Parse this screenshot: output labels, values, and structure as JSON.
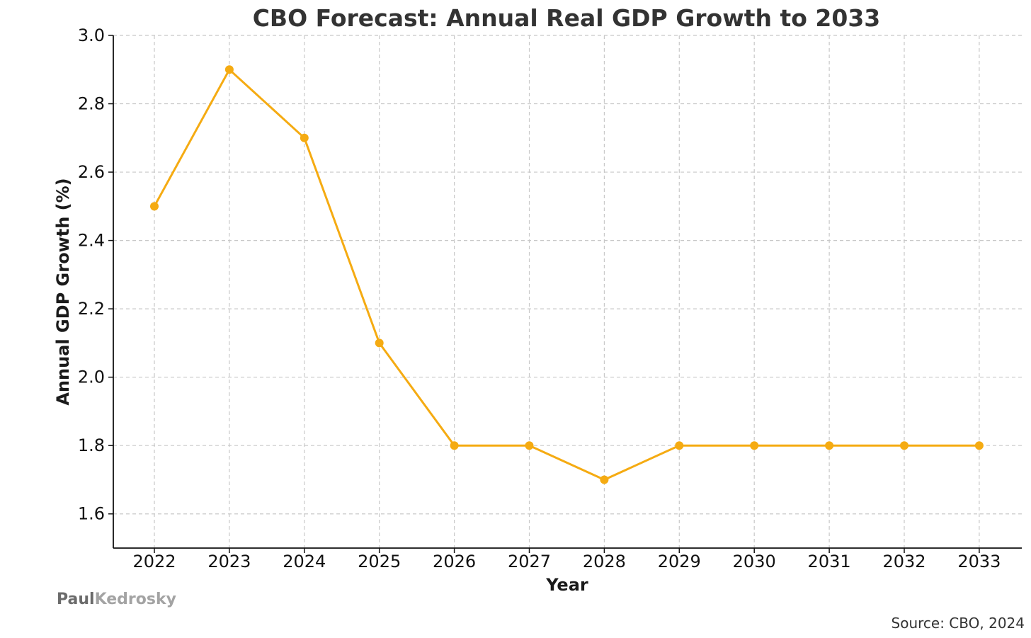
{
  "chart_data": {
    "type": "line",
    "title": "CBO Forecast: Annual Real GDP Growth to 2033",
    "xlabel": "Year",
    "ylabel": "Annual GDP Growth (%)",
    "categories": [
      "2022",
      "2023",
      "2024",
      "2025",
      "2026",
      "2027",
      "2028",
      "2029",
      "2030",
      "2031",
      "2032",
      "2033"
    ],
    "series": [
      {
        "name": "Annual Real GDP Growth",
        "color": "#f5ab12",
        "values": [
          2.5,
          2.9,
          2.7,
          2.1,
          1.8,
          1.8,
          1.7,
          1.8,
          1.8,
          1.8,
          1.8,
          1.8
        ]
      }
    ],
    "ylim": [
      1.5,
      3.0
    ],
    "yticks": [
      "1.6",
      "1.8",
      "2.0",
      "2.2",
      "2.4",
      "2.6",
      "2.8",
      "3.0"
    ],
    "grid": true,
    "source": "Source: CBO, 2024",
    "brand": {
      "first": "Paul",
      "second": "Kedrosky"
    }
  }
}
